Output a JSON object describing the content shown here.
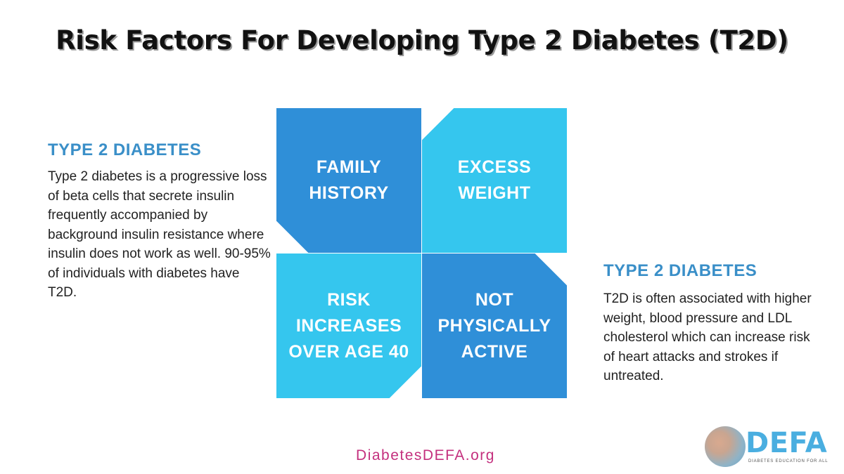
{
  "title": "Risk Factors For Developing Type 2 Diabetes (T2D)",
  "left_panel": {
    "heading": "TYPE 2 DIABETES",
    "text": "Type 2 diabetes is a progressive loss of beta cells that secrete insulin frequently accompanied by background insulin resistance where insulin does not work as well. 90-95% of individuals with diabetes have T2D."
  },
  "right_panel": {
    "heading": "TYPE 2 DIABETES",
    "text": "T2D is often associated with higher weight, blood pressure and LDL cholesterol which can increase risk of heart attacks and strokes if untreated."
  },
  "risk_factors": [
    {
      "label": "FAMILY HISTORY",
      "color": "#2f8fd8"
    },
    {
      "label": "EXCESS WEIGHT",
      "color": "#35c6ee"
    },
    {
      "label": "RISK INCREASES OVER AGE 40",
      "color": "#35c6ee"
    },
    {
      "label": "NOT PHYSICALLY ACTIVE",
      "color": "#2f8fd8"
    }
  ],
  "website": "DiabetesDEFA.org",
  "logo": {
    "text": "DEFA",
    "tagline": "DIABETES EDUCATION FOR ALL"
  },
  "colors": {
    "heading": "#3a8fc8",
    "website": "#c4307e",
    "logo_text": "#4aaee0",
    "logo_tagline": "#555555",
    "title": "#111111"
  }
}
